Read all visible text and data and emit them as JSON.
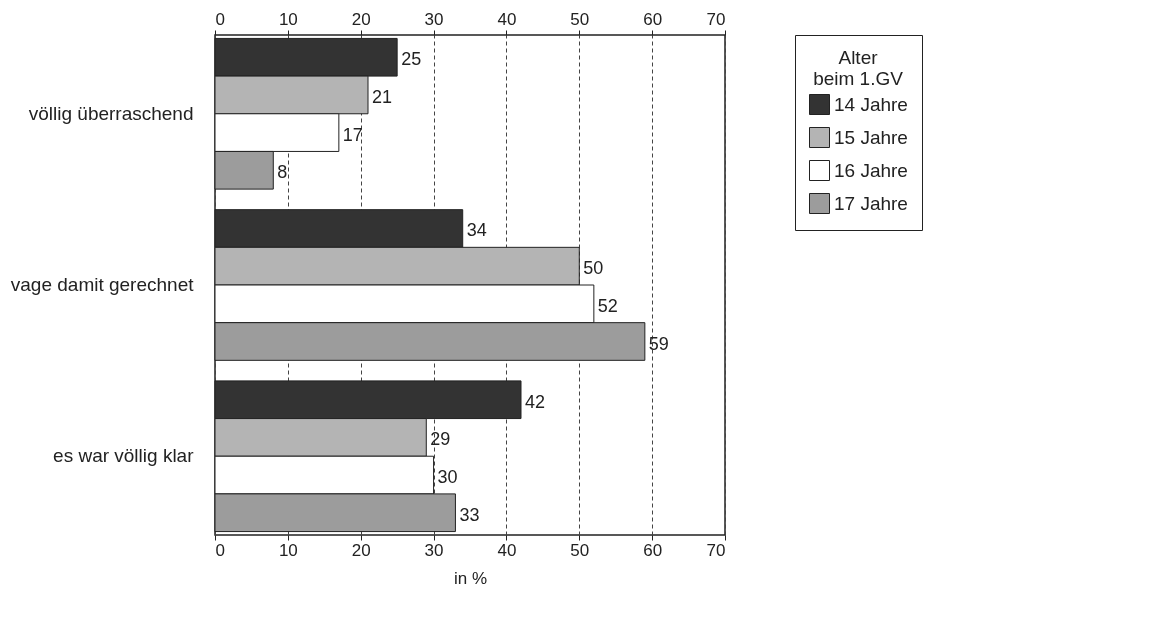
{
  "chart_data": {
    "type": "bar",
    "orientation": "horizontal",
    "categories": [
      "völlig überraschend",
      "vage damit gerechnet",
      "es war völlig klar"
    ],
    "series": [
      {
        "name": "14 Jahre",
        "color": "#333333",
        "values": [
          25,
          34,
          42
        ]
      },
      {
        "name": "15 Jahre",
        "color": "#b4b4b4",
        "values": [
          21,
          50,
          29
        ]
      },
      {
        "name": "16 Jahre",
        "color": "#ffffff",
        "values": [
          17,
          52,
          30
        ]
      },
      {
        "name": "17 Jahre",
        "color": "#9c9c9c",
        "values": [
          8,
          59,
          33
        ]
      }
    ],
    "xlim": [
      0,
      70
    ],
    "xticks": [
      0,
      10,
      20,
      30,
      40,
      50,
      60,
      70
    ],
    "x2lim": [
      0,
      70
    ],
    "x2ticks": [
      0,
      10,
      20,
      30,
      40,
      50,
      60,
      70
    ],
    "xlabel": "in %",
    "legend_title": "Alter beim 1.GV",
    "legend": "right",
    "grid": "x",
    "data_labels": true
  }
}
